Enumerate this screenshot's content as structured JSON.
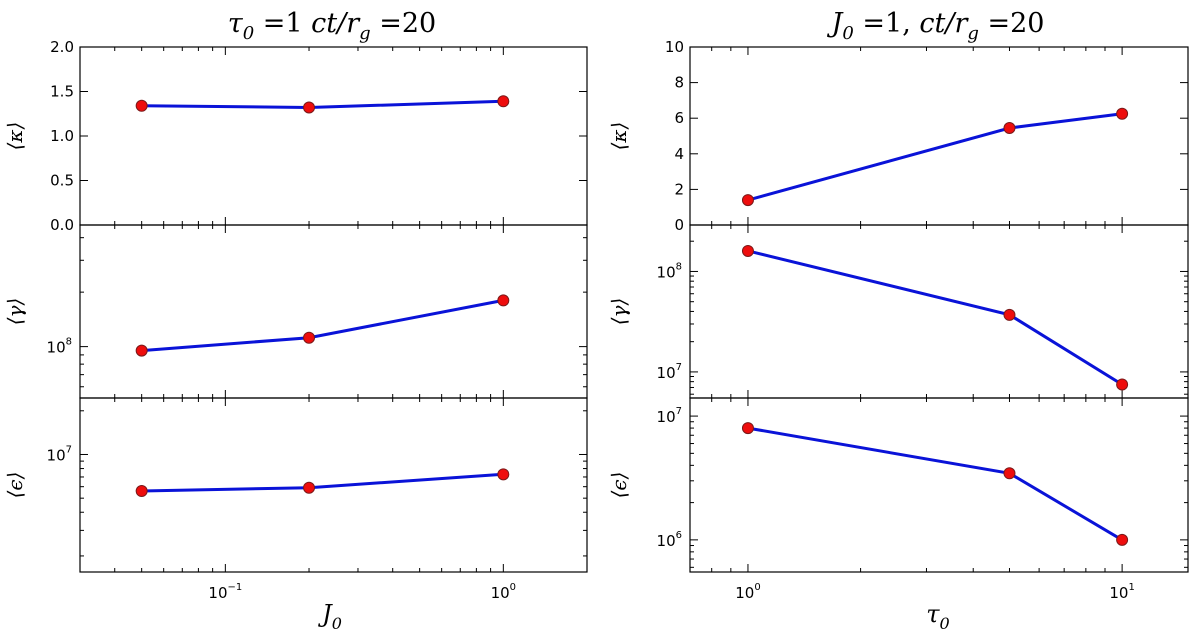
{
  "chart_data": [
    {
      "id": "left",
      "type": "line",
      "title": "τ₀ =1 ct/r_g =20",
      "title_parts": {
        "sym1": "τ",
        "sub1": "0",
        "eq1": " =1 ",
        "sym2": "ct/r",
        "sub2": "g",
        "eq2": " =20"
      },
      "xlabel": {
        "sym": "J",
        "sub": "0"
      },
      "xscale": "log",
      "xlim": [
        0.03,
        2.0
      ],
      "xticks": [
        {
          "value": 0.1,
          "base": "10",
          "exp": "−1"
        },
        {
          "value": 1.0,
          "base": "10",
          "exp": "0"
        }
      ],
      "x": [
        0.05,
        0.2,
        1.0
      ],
      "panels": [
        {
          "ylabel": "⟨κ⟩",
          "yscale": "linear",
          "ylim": [
            0.0,
            2.0
          ],
          "yticks": [
            {
              "value": 0.0,
              "label": "0.0"
            },
            {
              "value": 0.5,
              "label": "0.5"
            },
            {
              "value": 1.0,
              "label": "1.0"
            },
            {
              "value": 1.5,
              "label": "1.5"
            },
            {
              "value": 2.0,
              "label": "2.0"
            }
          ],
          "values": [
            1.34,
            1.32,
            1.39
          ]
        },
        {
          "ylabel": "⟨γ⟩",
          "yscale": "log",
          "ylim": [
            52000000,
            470000000
          ],
          "yticks": [
            {
              "value": 100000000,
              "base": "10",
              "exp": "8"
            }
          ],
          "values": [
            95000000,
            112000000,
            180000000
          ]
        },
        {
          "ylabel": "⟨ϵ⟩",
          "yscale": "log",
          "ylim": [
            1550000,
            24500000
          ],
          "yticks": [
            {
              "value": 10000000,
              "base": "10",
              "exp": "7"
            }
          ],
          "values": [
            5600000,
            5900000,
            7300000
          ]
        }
      ]
    },
    {
      "id": "right",
      "type": "line",
      "title": "J₀ =1, ct/r_g =20",
      "title_parts": {
        "sym1": "J",
        "sub1": "0",
        "eq1": " =1, ",
        "sym2": "ct/r",
        "sub2": "g",
        "eq2": " =20"
      },
      "xlabel": {
        "sym": "τ",
        "sub": "0"
      },
      "xscale": "log",
      "xlim": [
        0.7,
        15.0
      ],
      "xticks": [
        {
          "value": 1.0,
          "base": "10",
          "exp": "0"
        },
        {
          "value": 10.0,
          "base": "10",
          "exp": "1"
        }
      ],
      "x": [
        1.0,
        5.0,
        10.0
      ],
      "panels": [
        {
          "ylabel": "⟨κ⟩",
          "yscale": "linear",
          "ylim": [
            0,
            10
          ],
          "yticks": [
            {
              "value": 0,
              "label": "0"
            },
            {
              "value": 2,
              "label": "2"
            },
            {
              "value": 4,
              "label": "4"
            },
            {
              "value": 6,
              "label": "6"
            },
            {
              "value": 8,
              "label": "8"
            },
            {
              "value": 10,
              "label": "10"
            }
          ],
          "values": [
            1.4,
            5.45,
            6.25
          ]
        },
        {
          "ylabel": "⟨γ⟩",
          "yscale": "log",
          "ylim": [
            5500000,
            290000000
          ],
          "yticks": [
            {
              "value": 10000000,
              "base": "10",
              "exp": "7"
            },
            {
              "value": 100000000,
              "base": "10",
              "exp": "8"
            }
          ],
          "values": [
            160000000,
            37000000,
            7500000
          ]
        },
        {
          "ylabel": "⟨ϵ⟩",
          "yscale": "log",
          "ylim": [
            550000,
            14000000
          ],
          "yticks": [
            {
              "value": 1000000,
              "base": "10",
              "exp": "6"
            },
            {
              "value": 10000000,
              "base": "10",
              "exp": "7"
            }
          ],
          "values": [
            8000000,
            3450000,
            1000000
          ]
        }
      ]
    }
  ]
}
